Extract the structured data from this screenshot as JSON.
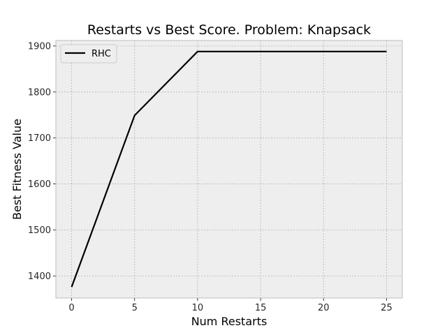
{
  "chart_data": {
    "type": "line",
    "title": "Restarts vs Best Score.  Problem: Knapsack",
    "xlabel": "Num Restarts",
    "ylabel": "Best Fitness Value",
    "xlim": [
      -1.25,
      26.25
    ],
    "ylim": [
      1352,
      1912
    ],
    "xticks": [
      0,
      5,
      10,
      15,
      20,
      25
    ],
    "yticks": [
      1400,
      1500,
      1600,
      1700,
      1800,
      1900
    ],
    "grid": true,
    "legend_position": "upper-left",
    "series": [
      {
        "name": "RHC",
        "color": "#000000",
        "x": [
          0,
          5,
          10,
          15,
          20,
          25
        ],
        "y": [
          1376,
          1749,
          1888,
          1888,
          1888,
          1888
        ]
      }
    ]
  },
  "colors": {
    "plot_background": "#eeeeee",
    "grid": "#b3b3b3",
    "spine": "#bcbcbc"
  }
}
